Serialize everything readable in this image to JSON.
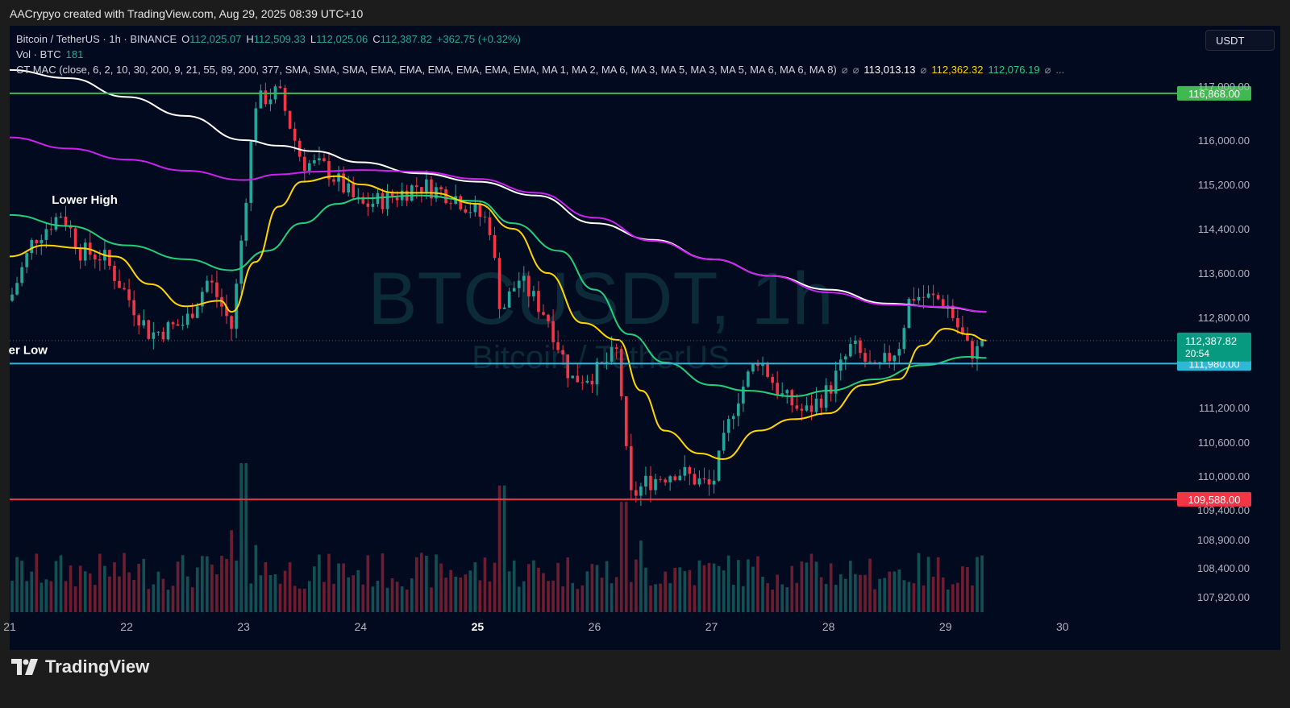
{
  "caption": "AACrypyo created with TradingView.com, Aug 29, 2025 08:39 UTC+10",
  "symbol_line": {
    "name": "Bitcoin / TetherUS · 1h · BINANCE",
    "open_label": "O",
    "open": "112,025.07",
    "high_label": "H",
    "high": "112,509.33",
    "low_label": "L",
    "low": "112,025.06",
    "close_label": "C",
    "close": "112,387.82",
    "change": "+362.75 (+0.32%)"
  },
  "volume_line": {
    "label": "Vol · BTC",
    "value": "181"
  },
  "indicator_line": {
    "label": "CT MAC (close, 6, 2, 10, 30, 200, 9, 21, 55, 89, 200, 377, SMA, SMA, SMA, EMA, EMA, EMA, EMA, EMA, EMA, MA 1, MA 2, MA 6, MA 3, MA 5, MA 3, MA 5, MA 6, MA 6, MA 8)",
    "sym1": "⌀",
    "sym2": "⌀",
    "v1": "113,013.13",
    "sym3": "⌀",
    "v2": "112,362.32",
    "v3": "112,076.19",
    "sym4": "⌀",
    "more": "..."
  },
  "currency": "USDT",
  "watermark": {
    "main": "BTCUSDT, 1h",
    "sub": "Bitcoin / TetherUS"
  },
  "brand": "TradingView",
  "chart_data": {
    "type": "candlestick",
    "y_axis_ticks": [
      "117,000.00",
      "116,000.00",
      "115,200.00",
      "114,400.00",
      "113,600.00",
      "112,800.00",
      "111,200.00",
      "110,600.00",
      "110,000.00",
      "109,400.00",
      "108,900.00",
      "108,400.00",
      "107,920.00"
    ],
    "y_axis_tick_values": [
      117000,
      116000,
      115200,
      114400,
      113600,
      112800,
      111200,
      110600,
      110000,
      109400,
      108900,
      108400,
      107920
    ],
    "x_axis_ticks": [
      "21",
      "22",
      "23",
      "24",
      "25",
      "26",
      "27",
      "28",
      "29",
      "30"
    ],
    "x_axis_tick_values": [
      21,
      22,
      23,
      24,
      25,
      26,
      27,
      28,
      29,
      30
    ],
    "bold_x_tick": "25",
    "x_range": [
      21,
      30.98
    ],
    "y_range": [
      107400,
      117500
    ],
    "price_levels": [
      {
        "value": 116868,
        "label": "116,868.00",
        "color": "#3fb950"
      },
      {
        "value": 111980,
        "label": "111,980.00",
        "color": "#2eb8d6"
      },
      {
        "value": 109588,
        "label": "109,588.00",
        "color": "#f23645"
      }
    ],
    "last_price": {
      "value": 112387.82,
      "label": "112,387.82",
      "countdown": "20:54",
      "color": "#089981"
    },
    "annotations": [
      {
        "text": "Lower High",
        "x": 21.36,
        "y": 114850
      },
      {
        "text": "er Low",
        "x": 20.99,
        "y": 112150
      }
    ],
    "series": [
      {
        "kind": "ma",
        "color": "#ffffff",
        "points": [
          [
            21,
            117300
          ],
          [
            21.5,
            117150
          ],
          [
            22,
            116800
          ],
          [
            22.5,
            116450
          ],
          [
            23,
            116000
          ],
          [
            23.3,
            115900
          ],
          [
            23.6,
            115800
          ],
          [
            24,
            115600
          ],
          [
            24.5,
            115400
          ],
          [
            25,
            115250
          ],
          [
            25.5,
            115000
          ],
          [
            26,
            114500
          ],
          [
            26.5,
            114200
          ],
          [
            27,
            113850
          ],
          [
            27.5,
            113550
          ],
          [
            28,
            113300
          ],
          [
            28.5,
            113050
          ],
          [
            29,
            112980
          ],
          [
            29.35,
            112900
          ]
        ]
      },
      {
        "kind": "ma",
        "color": "#cc22ee",
        "points": [
          [
            21,
            116050
          ],
          [
            21.5,
            115850
          ],
          [
            22,
            115650
          ],
          [
            22.5,
            115450
          ],
          [
            23,
            115280
          ],
          [
            23.3,
            115380
          ],
          [
            23.6,
            115430
          ],
          [
            24,
            115460
          ],
          [
            24.5,
            115430
          ],
          [
            25,
            115300
          ],
          [
            25.5,
            115050
          ],
          [
            26,
            114600
          ],
          [
            26.5,
            114180
          ],
          [
            27,
            113850
          ],
          [
            27.5,
            113550
          ],
          [
            28,
            113250
          ],
          [
            28.5,
            113030
          ],
          [
            29,
            112990
          ],
          [
            29.35,
            112900
          ]
        ]
      },
      {
        "kind": "ma",
        "color": "#21d07a",
        "points": [
          [
            21,
            114650
          ],
          [
            21.5,
            114450
          ],
          [
            22,
            114100
          ],
          [
            22.5,
            113850
          ],
          [
            22.9,
            113650
          ],
          [
            23.2,
            114000
          ],
          [
            23.5,
            114500
          ],
          [
            23.8,
            114850
          ],
          [
            24,
            114950
          ],
          [
            24.5,
            115000
          ],
          [
            25,
            114900
          ],
          [
            25.3,
            114500
          ],
          [
            25.7,
            114000
          ],
          [
            26,
            113300
          ],
          [
            26.3,
            112500
          ],
          [
            26.6,
            112000
          ],
          [
            27,
            111600
          ],
          [
            27.3,
            111500
          ],
          [
            27.7,
            111400
          ],
          [
            28,
            111500
          ],
          [
            28.4,
            111700
          ],
          [
            28.8,
            111950
          ],
          [
            29.2,
            112100
          ],
          [
            29.35,
            112080
          ]
        ]
      },
      {
        "kind": "ma",
        "color": "#ffd500",
        "points": [
          [
            21,
            113900
          ],
          [
            21.3,
            114100
          ],
          [
            21.6,
            114050
          ],
          [
            21.9,
            113900
          ],
          [
            22.2,
            113400
          ],
          [
            22.5,
            113000
          ],
          [
            22.8,
            113100
          ],
          [
            22.9,
            112900
          ],
          [
            23.1,
            113800
          ],
          [
            23.3,
            114800
          ],
          [
            23.5,
            115250
          ],
          [
            23.8,
            115350
          ],
          [
            24,
            115200
          ],
          [
            24.3,
            115050
          ],
          [
            24.6,
            115050
          ],
          [
            25,
            114850
          ],
          [
            25.3,
            114400
          ],
          [
            25.6,
            113600
          ],
          [
            25.9,
            112700
          ],
          [
            26.2,
            112400
          ],
          [
            26.4,
            111500
          ],
          [
            26.6,
            110800
          ],
          [
            26.9,
            110400
          ],
          [
            27.1,
            110300
          ],
          [
            27.4,
            110800
          ],
          [
            27.7,
            111000
          ],
          [
            28,
            111100
          ],
          [
            28.3,
            111600
          ],
          [
            28.6,
            111700
          ],
          [
            28.8,
            112300
          ],
          [
            29,
            112600
          ],
          [
            29.2,
            112500
          ],
          [
            29.35,
            112390
          ]
        ]
      },
      {
        "kind": "price",
        "color": "#26a69a",
        "points": [
          [
            21,
            113100
          ],
          [
            21.2,
            114200
          ],
          [
            21.45,
            114700
          ],
          [
            21.6,
            114000
          ],
          [
            21.8,
            113900
          ],
          [
            22,
            113200
          ],
          [
            22.2,
            112500
          ],
          [
            22.5,
            112700
          ],
          [
            22.7,
            113500
          ],
          [
            22.9,
            112600
          ],
          [
            23,
            114600
          ],
          [
            23.1,
            116700
          ],
          [
            23.3,
            116900
          ],
          [
            23.5,
            115600
          ],
          [
            23.7,
            115500
          ],
          [
            24,
            114800
          ],
          [
            24.3,
            115000
          ],
          [
            24.5,
            115200
          ],
          [
            24.8,
            115000
          ],
          [
            25.1,
            114500
          ],
          [
            25.2,
            112900
          ],
          [
            25.35,
            113500
          ],
          [
            25.6,
            112800
          ],
          [
            25.8,
            111700
          ],
          [
            26,
            111800
          ],
          [
            26.2,
            112200
          ],
          [
            26.3,
            109600
          ],
          [
            26.45,
            109900
          ],
          [
            26.7,
            110100
          ],
          [
            27,
            109800
          ],
          [
            27.2,
            111300
          ],
          [
            27.4,
            112100
          ],
          [
            27.6,
            111400
          ],
          [
            27.8,
            111100
          ],
          [
            28,
            111500
          ],
          [
            28.2,
            112300
          ],
          [
            28.4,
            111800
          ],
          [
            28.6,
            112300
          ],
          [
            28.7,
            113200
          ],
          [
            29,
            113100
          ],
          [
            29.2,
            112200
          ],
          [
            29.32,
            112200
          ],
          [
            29.35,
            112387
          ]
        ]
      }
    ],
    "volume_profile": [
      [
        22.9,
        0.55
      ],
      [
        23,
        1.0
      ],
      [
        23.1,
        0.45
      ],
      [
        25.2,
        0.85
      ],
      [
        26.25,
        0.74
      ],
      [
        26.4,
        0.48
      ],
      [
        27.1,
        0.28
      ],
      [
        28.3,
        0.25
      ]
    ]
  }
}
